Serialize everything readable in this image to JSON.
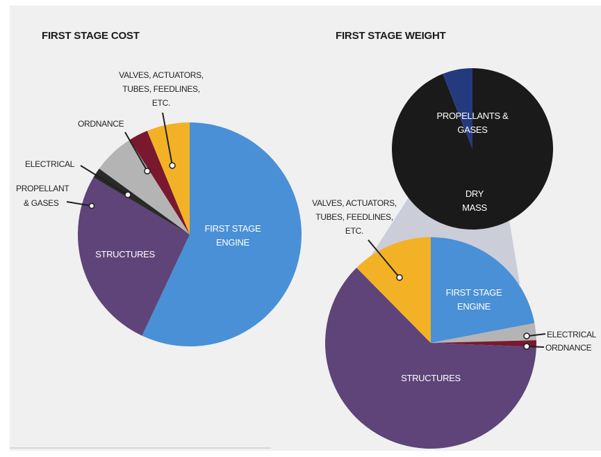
{
  "chart_data": [
    {
      "type": "pie",
      "title": "FIRST STAGE COST",
      "start_angle_deg": 0,
      "direction": "clockwise",
      "categories": [
        "FIRST STAGE ENGINE",
        "STRUCTURES",
        "PROPELLANT & GASES",
        "ELECTRICAL",
        "ORDNANCE",
        "VALVES, ACTUATORS, TUBES, FEEDLINES, ETC."
      ],
      "values": [
        57,
        26.5,
        1.5,
        6,
        2.8,
        6.2
      ],
      "colors": [
        "#4a90d6",
        "#5e4478",
        "#2a2a2a",
        "#b4b4b4",
        "#7a1830",
        "#f3b226"
      ]
    },
    {
      "type": "pie",
      "title": "FIRST STAGE WEIGHT",
      "start_angle_deg": 0,
      "direction": "clockwise",
      "categories": [
        "FIRST STAGE ENGINE",
        "ELECTRICAL",
        "ORDNANCE",
        "STRUCTURES",
        "VALVES, ACTUATORS, TUBES, FEEDLINES, ETC."
      ],
      "values": [
        22,
        2.6,
        1,
        62,
        12.4
      ],
      "colors": [
        "#4a90d6",
        "#b4b4b4",
        "#7a1830",
        "#5e4478",
        "#f3b226"
      ],
      "inset": {
        "type": "pie",
        "categories": [
          "PROPELLANTS & GASES",
          "DRY MASS"
        ],
        "values": [
          94,
          6
        ],
        "colors": [
          "#1b1a1b",
          "#243a7e"
        ]
      }
    }
  ],
  "labels": {
    "cost_title": "FIRST STAGE COST",
    "weight_title": "FIRST STAGE WEIGHT",
    "cost_valves": [
      "VALVES, ACTUATORS,",
      "TUBES, FEEDLINES,",
      "ETC."
    ],
    "cost_ordnance": "ORDNANCE",
    "cost_electrical": "ELECTRICAL",
    "cost_propellant": [
      "PROPELLANT",
      "& GASES"
    ],
    "cost_structures": "STRUCTURES",
    "cost_engine": [
      "FIRST STAGE",
      "ENGINE"
    ],
    "weight_propellants": [
      "PROPELLANTS &",
      "GASES"
    ],
    "weight_dry": [
      "DRY",
      "MASS"
    ],
    "weight_valves": [
      "VALVES, ACTUATORS,",
      "TUBES, FEEDLINES,",
      "ETC."
    ],
    "weight_engine": [
      "FIRST STAGE",
      "ENGINE"
    ],
    "weight_electrical": "ELECTRICAL",
    "weight_ordnance": "ORDNANCE",
    "weight_structures": "STRUCTURES"
  },
  "colors": {
    "panel_background": "#f0f0f0",
    "connector": "#cbcdd9"
  }
}
